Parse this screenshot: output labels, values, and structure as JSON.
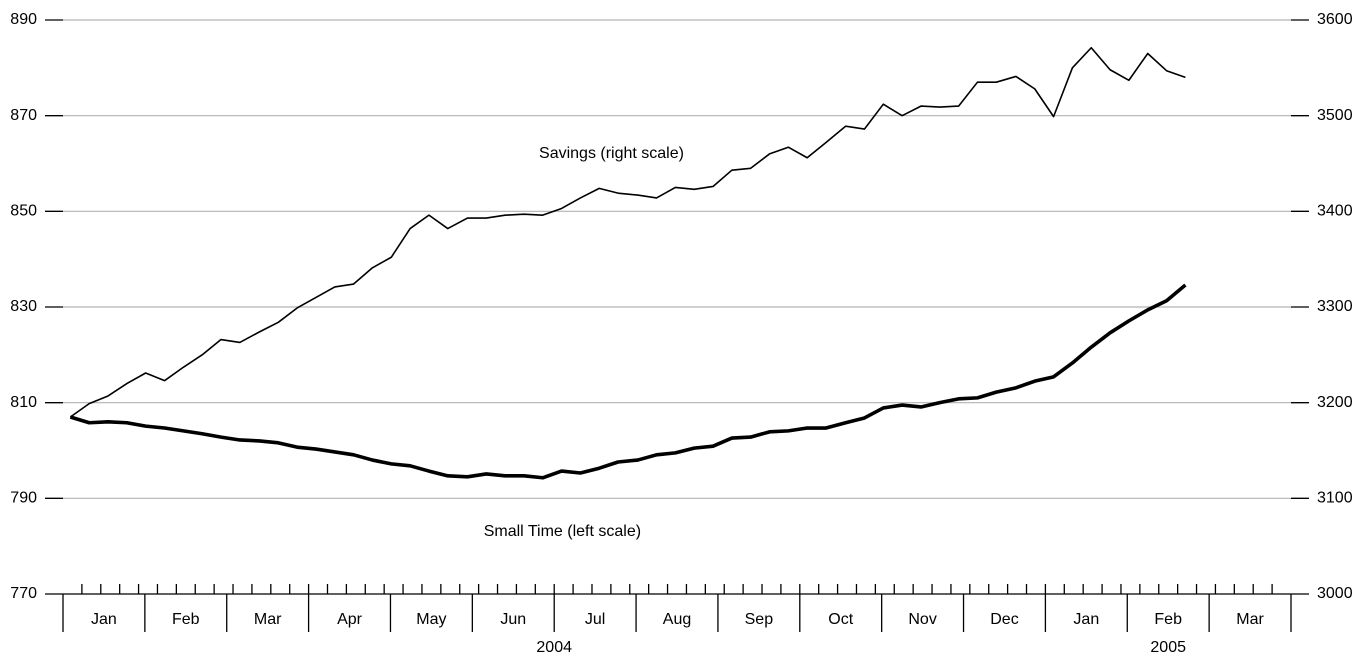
{
  "chart_data": {
    "type": "line",
    "annotations": [
      {
        "text": "Savings (right scale)",
        "x": 6.7,
        "y": 3460,
        "axis": "y2"
      },
      {
        "text": "Small Time (left scale)",
        "x": 6.1,
        "y": 783
      }
    ],
    "x": [
      0.09,
      0.32,
      0.55,
      0.78,
      1.01,
      1.24,
      1.47,
      1.7,
      1.93,
      2.16,
      2.4,
      2.63,
      2.86,
      3.09,
      3.32,
      3.55,
      3.78,
      4.01,
      4.24,
      4.47,
      4.7,
      4.94,
      5.17,
      5.4,
      5.63,
      5.86,
      6.09,
      6.32,
      6.55,
      6.78,
      7.02,
      7.25,
      7.48,
      7.71,
      7.94,
      8.17,
      8.4,
      8.63,
      8.86,
      9.09,
      9.32,
      9.56,
      9.79,
      10.02,
      10.25,
      10.48,
      10.71,
      10.94,
      11.17,
      11.4,
      11.64,
      11.87,
      12.1,
      12.33,
      12.56,
      12.79,
      13.02,
      13.25,
      13.48,
      13.71
    ],
    "series": [
      {
        "name": "Savings",
        "axis": "y2",
        "color": "#000000",
        "values": [
          3185,
          3199,
          3207,
          3220,
          3231,
          3223,
          3237,
          3250,
          3266,
          3263,
          3274,
          3284,
          3299,
          3310,
          3321,
          3324,
          3341,
          3352,
          3382,
          3396,
          3382,
          3393,
          3393,
          3396,
          3397,
          3396,
          3403,
          3414,
          3424,
          3419,
          3417,
          3414,
          3425,
          3423,
          3426,
          3443,
          3445,
          3460,
          3467,
          3456,
          3472,
          3489,
          3486,
          3512,
          3500,
          3510,
          3509,
          3510,
          3535,
          3535,
          3541,
          3528,
          3499,
          3550,
          3571,
          3548,
          3537,
          3565,
          3547,
          3540
        ]
      },
      {
        "name": "Small Time",
        "axis": "y",
        "color": "#000000",
        "values": [
          807,
          805.8,
          806,
          805.8,
          805.1,
          804.7,
          804.1,
          803.5,
          802.8,
          802.2,
          802,
          801.6,
          800.7,
          800.3,
          799.7,
          799.1,
          798,
          797.2,
          796.8,
          795.7,
          794.7,
          794.5,
          795.1,
          794.7,
          794.7,
          794.3,
          795.7,
          795.3,
          796.3,
          797.6,
          798,
          799.1,
          799.5,
          800.5,
          800.9,
          802.6,
          802.8,
          803.9,
          804.1,
          804.7,
          804.7,
          805.8,
          806.8,
          808.9,
          809.5,
          809.1,
          810,
          810.8,
          811,
          812.2,
          813.1,
          814.5,
          815.4,
          818.3,
          821.6,
          824.6,
          827.1,
          829.4,
          831.3,
          834.6
        ]
      }
    ],
    "xlim": [
      0,
      15
    ],
    "xticks": [
      {
        "value": 0.5,
        "label": "Jan"
      },
      {
        "value": 1.5,
        "label": "Feb"
      },
      {
        "value": 2.5,
        "label": "Mar"
      },
      {
        "value": 3.5,
        "label": "Apr"
      },
      {
        "value": 4.5,
        "label": "May"
      },
      {
        "value": 5.5,
        "label": "Jun"
      },
      {
        "value": 6.5,
        "label": "Jul"
      },
      {
        "value": 7.5,
        "label": "Aug"
      },
      {
        "value": 8.5,
        "label": "Sep"
      },
      {
        "value": 9.5,
        "label": "Oct"
      },
      {
        "value": 10.5,
        "label": "Nov"
      },
      {
        "value": 11.5,
        "label": "Dec"
      },
      {
        "value": 12.5,
        "label": "Jan"
      },
      {
        "value": 13.5,
        "label": "Feb"
      },
      {
        "value": 14.5,
        "label": "Mar"
      }
    ],
    "x_group_labels": [
      {
        "value": 6,
        "label": "2004"
      },
      {
        "value": 13.5,
        "label": "2005"
      }
    ],
    "ylim": [
      770,
      890
    ],
    "yticks": [
      770,
      790,
      810,
      830,
      850,
      870,
      890
    ],
    "y2lim": [
      3000,
      3600
    ],
    "y2ticks": [
      3000,
      3100,
      3200,
      3300,
      3400,
      3500,
      3600
    ],
    "grid": true
  }
}
